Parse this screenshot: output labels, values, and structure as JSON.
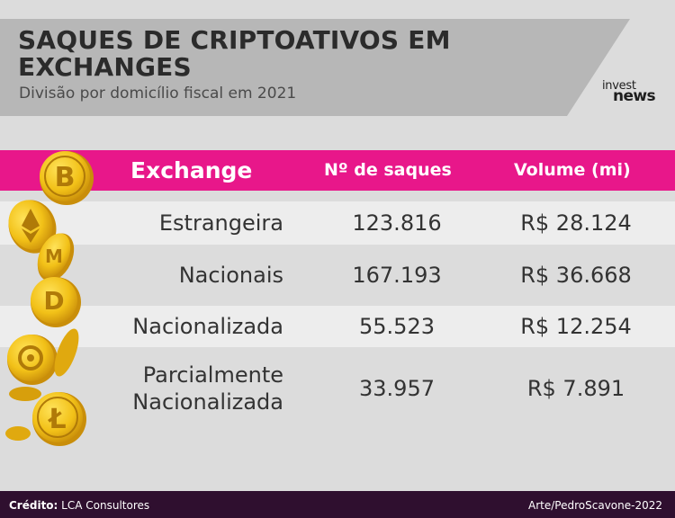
{
  "header": {
    "title_line1": "SAQUES DE CRIPTOATIVOS EM",
    "title_line2": "EXCHANGES",
    "subtitle": "Divisão por domicílio fiscal em 2021",
    "logo_top": "invest",
    "logo_bottom": "news"
  },
  "table": {
    "columns": [
      "Exchange",
      "Nº de saques",
      "Volume (mi)"
    ],
    "rows": [
      {
        "name": "Estrangeira",
        "saques": "123.816",
        "volume": "R$ 28.124"
      },
      {
        "name": "Nacionais",
        "saques": "167.193",
        "volume": "R$ 36.668"
      },
      {
        "name": "Nacionalizada",
        "saques": "55.523",
        "volume": "R$ 12.254"
      },
      {
        "name": "Parcialmente Nacionalizada",
        "saques": "33.957",
        "volume": "R$ 7.891"
      }
    ]
  },
  "footer": {
    "credit_label": "Crédito:",
    "credit_value": " LCA Consultores",
    "art": "Arte/PedroScavone-2022"
  },
  "colors": {
    "accent": "#e8178a",
    "header_band": "#b7b7b7",
    "footer": "#2f0f2f",
    "coin_gold": "#f2c118"
  },
  "icons": [
    "bitcoin-coin-icon",
    "ethereum-coin-icon",
    "monero-coin-icon",
    "dash-coin-icon",
    "ripple-coin-icon",
    "litecoin-coin-icon"
  ]
}
